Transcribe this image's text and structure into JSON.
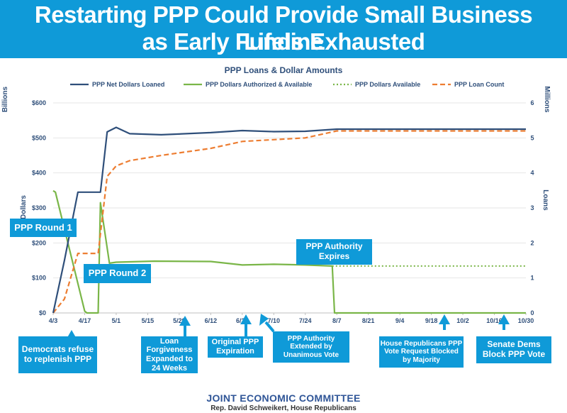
{
  "banner": {
    "line1": "Restarting PPP Could Provide Small Business Lifeline",
    "line2": "as Early Funds Exhausted"
  },
  "chart_data": {
    "type": "line",
    "title": "PPP Loans & Dollar Amounts",
    "left_axis": {
      "label": "Dollars",
      "units_label": "Billions",
      "range": [
        0,
        600
      ],
      "ticks": [
        "$0",
        "$100",
        "$200",
        "$300",
        "$400",
        "$500",
        "$600"
      ]
    },
    "right_axis": {
      "label": "Loans",
      "units_label": "Millions",
      "range": [
        0,
        6
      ],
      "ticks": [
        "0",
        "1",
        "2",
        "3",
        "4",
        "5",
        "6"
      ]
    },
    "x_range_days": [
      0,
      210
    ],
    "x_ticks": [
      {
        "label": "4/3",
        "day": 0
      },
      {
        "label": "4/17",
        "day": 14
      },
      {
        "label": "5/1",
        "day": 28
      },
      {
        "label": "5/15",
        "day": 42
      },
      {
        "label": "5/29",
        "day": 56
      },
      {
        "label": "6/12",
        "day": 70
      },
      {
        "label": "6/26",
        "day": 84
      },
      {
        "label": "7/10",
        "day": 98
      },
      {
        "label": "7/24",
        "day": 112
      },
      {
        "label": "8/7",
        "day": 126
      },
      {
        "label": "8/21",
        "day": 140
      },
      {
        "label": "9/4",
        "day": 154
      },
      {
        "label": "9/18",
        "day": 168
      },
      {
        "label": "10/2",
        "day": 182
      },
      {
        "label": "10/16",
        "day": 196
      },
      {
        "label": "10/30",
        "day": 210
      }
    ],
    "legend_position": "top",
    "series": [
      {
        "name": "PPP Net Dollars Loaned",
        "axis": "left",
        "color": "#2f4f7a",
        "style": "solid",
        "points": [
          [
            0,
            0
          ],
          [
            5,
            150
          ],
          [
            11,
            345
          ],
          [
            19,
            345
          ],
          [
            21,
            345
          ],
          [
            24,
            517
          ],
          [
            28,
            530
          ],
          [
            34,
            512
          ],
          [
            48,
            509
          ],
          [
            70,
            515
          ],
          [
            84,
            521
          ],
          [
            98,
            518
          ],
          [
            112,
            519
          ],
          [
            126,
            525
          ],
          [
            154,
            525
          ],
          [
            210,
            525
          ]
        ]
      },
      {
        "name": "PPP Dollars Authorized & Available",
        "axis": "left",
        "color": "#7ab648",
        "style": "solid",
        "points": [
          [
            0,
            349
          ],
          [
            1,
            345
          ],
          [
            14,
            5
          ],
          [
            15,
            0
          ],
          [
            20,
            0
          ],
          [
            21,
            315
          ],
          [
            25,
            142
          ],
          [
            28,
            145
          ],
          [
            45,
            148
          ],
          [
            70,
            147
          ],
          [
            84,
            137
          ],
          [
            98,
            139
          ],
          [
            112,
            137
          ],
          [
            124,
            134
          ],
          [
            125,
            0
          ],
          [
            210,
            0
          ]
        ]
      },
      {
        "name": "PPP Dollars Available",
        "axis": "left",
        "color": "#7ab648",
        "style": "dotted",
        "points": [
          [
            124,
            134
          ],
          [
            210,
            134
          ]
        ]
      },
      {
        "name": "PPP Loan Count",
        "axis": "right",
        "color": "#ed7d31",
        "style": "dashed",
        "points": [
          [
            0,
            0
          ],
          [
            5,
            0.4
          ],
          [
            11,
            1.7
          ],
          [
            20,
            1.7
          ],
          [
            24,
            3.9
          ],
          [
            28,
            4.2
          ],
          [
            34,
            4.35
          ],
          [
            48,
            4.5
          ],
          [
            70,
            4.7
          ],
          [
            84,
            4.9
          ],
          [
            98,
            4.95
          ],
          [
            112,
            5.0
          ],
          [
            126,
            5.2
          ],
          [
            154,
            5.2
          ],
          [
            210,
            5.2
          ]
        ]
      }
    ]
  },
  "callouts": {
    "round1": "PPP Round 1",
    "round2": "PPP Round 2",
    "authority": "PPP Authority Expires",
    "democrats": "Democrats refuse to replenish PPP",
    "loan_forgiveness": "Loan Forgiveness Expanded to 24 Weeks",
    "original_expiration": "Original PPP Expiration",
    "authority_extended": "PPP Authority Extended by Unanimous Vote",
    "house_republicans": "House Republicans PPP Vote Request Blocked by Majority",
    "senate_dems": "Senate Dems Block PPP Vote"
  },
  "footer": {
    "committee": "JOINT ECONOMIC COMMITTEE",
    "member": "Rep. David Schweikert, House Republicans"
  }
}
